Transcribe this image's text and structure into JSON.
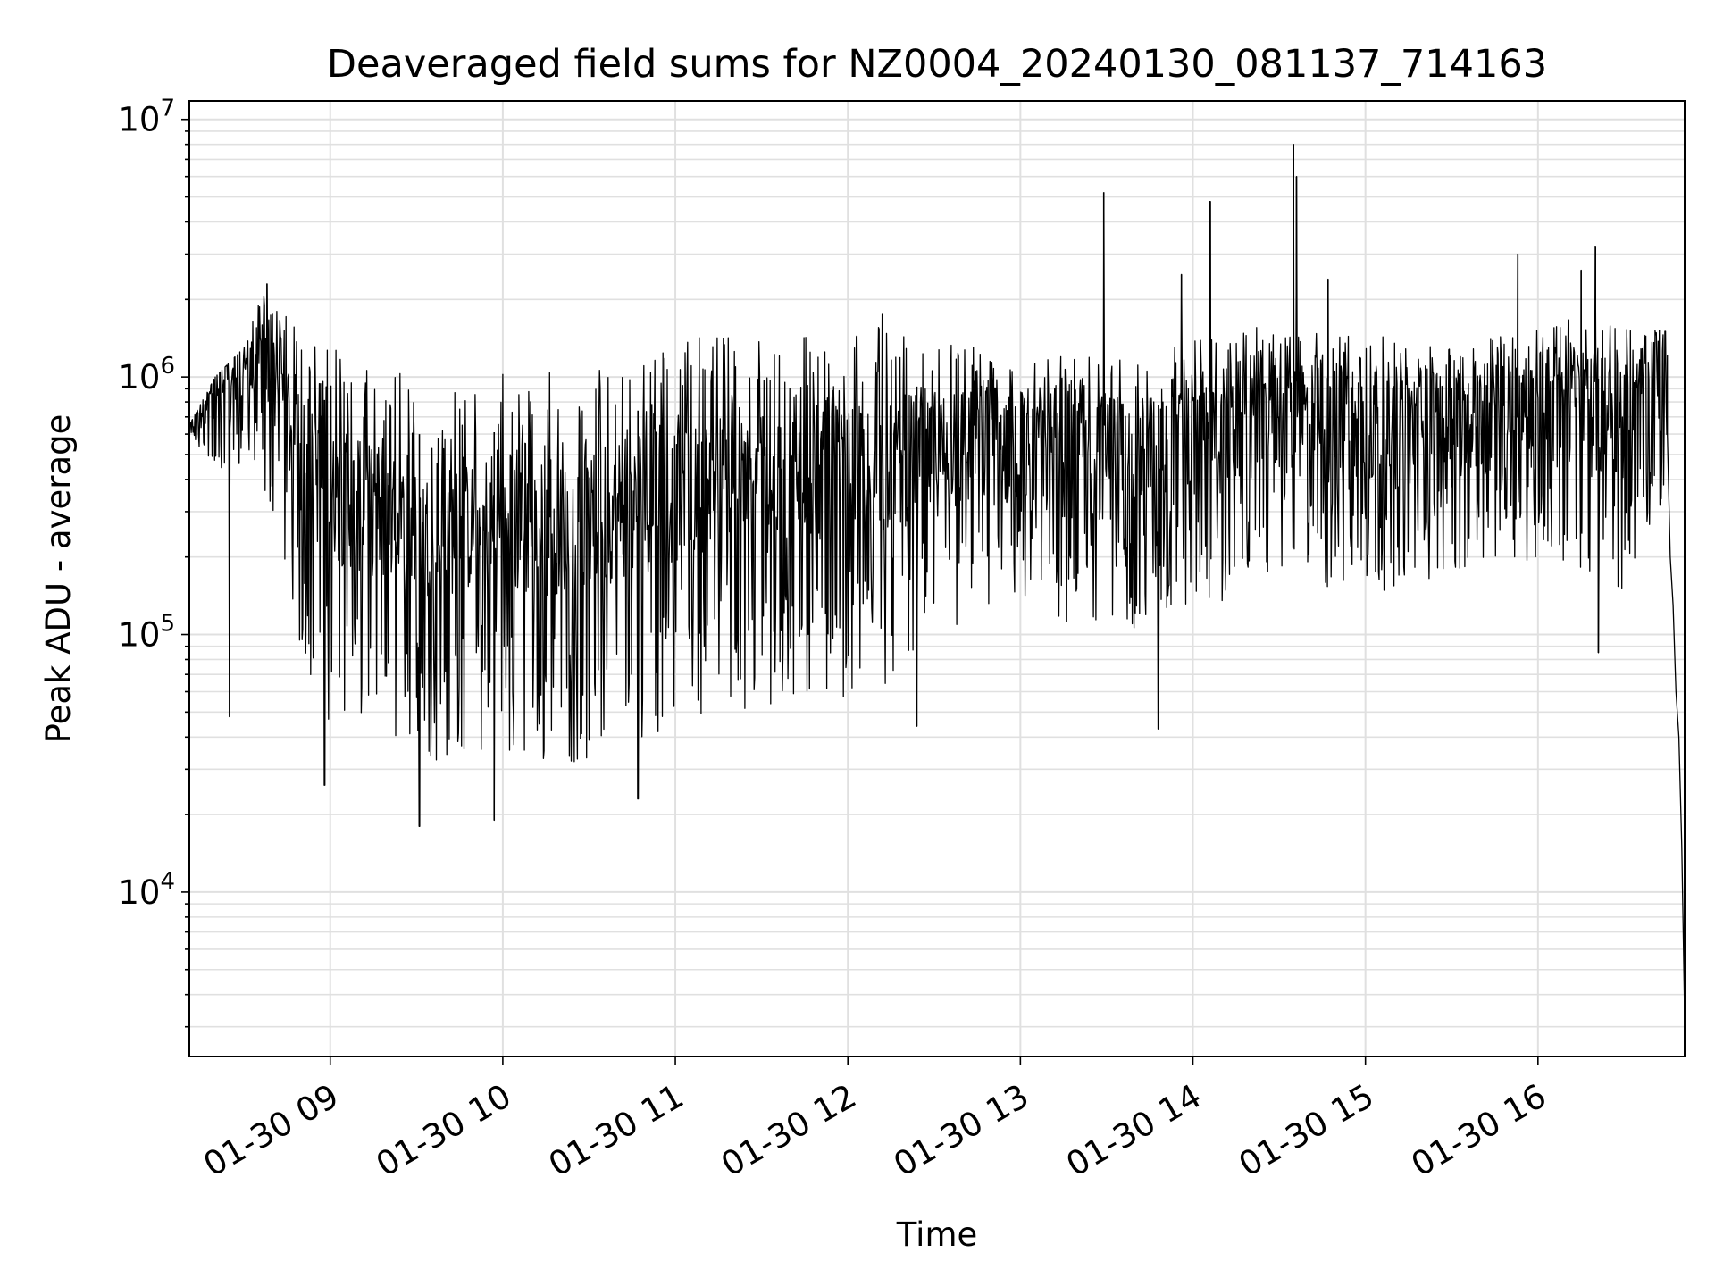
{
  "chart_data": {
    "type": "line",
    "title": "Deaveraged field sums for NZ0004_20240130_081137_714163",
    "xlabel": "Time",
    "ylabel": "Peak ADU - average",
    "yscale": "log",
    "grid": true,
    "x_range": [
      "01-30 08:11",
      "01-30 16:51"
    ],
    "ylim": [
      2300,
      11800000
    ],
    "x_ticks": [
      "01-30 09",
      "01-30 10",
      "01-30 11",
      "01-30 12",
      "01-30 13",
      "01-30 14",
      "01-30 15",
      "01-30 16"
    ],
    "y_ticks": [
      {
        "base": "10",
        "exp": "4",
        "value": 10000
      },
      {
        "base": "10",
        "exp": "5",
        "value": 100000
      },
      {
        "base": "10",
        "exp": "6",
        "value": 1000000
      },
      {
        "base": "10",
        "exp": "7",
        "value": 10000000
      }
    ],
    "series": [
      {
        "color": "#000000",
        "upper_envelope": [
          [
            "01-30 08:11",
            650000
          ],
          [
            "01-30 08:20",
            1000000
          ],
          [
            "01-30 08:30",
            1300000
          ],
          [
            "01-30 08:37",
            2200000
          ],
          [
            "01-30 08:45",
            1700000
          ],
          [
            "01-30 08:55",
            1400000
          ],
          [
            "01-30 09:10",
            1200000
          ],
          [
            "01-30 09:30",
            1000000
          ],
          [
            "01-30 09:50",
            1000000
          ],
          [
            "01-30 10:10",
            1050000
          ],
          [
            "01-30 10:30",
            1150000
          ],
          [
            "01-30 10:50",
            1250000
          ],
          [
            "01-30 11:10",
            1450000
          ],
          [
            "01-30 11:30",
            1500000
          ],
          [
            "01-30 11:50",
            1550000
          ],
          [
            "01-30 12:10",
            1600000
          ],
          [
            "01-30 12:30",
            1500000
          ],
          [
            "01-30 12:50",
            1350000
          ],
          [
            "01-30 13:10",
            1250000
          ],
          [
            "01-30 13:30",
            1250000
          ],
          [
            "01-30 13:50",
            1300000
          ],
          [
            "01-30 14:10",
            1500000
          ],
          [
            "01-30 14:30",
            1600000
          ],
          [
            "01-30 14:50",
            1600000
          ],
          [
            "01-30 15:10",
            1400000
          ],
          [
            "01-30 15:30",
            1300000
          ],
          [
            "01-30 15:50",
            1500000
          ],
          [
            "01-30 16:10",
            1700000
          ],
          [
            "01-30 16:30",
            1600000
          ],
          [
            "01-30 16:45",
            1500000
          ]
        ],
        "lower_envelope": [
          [
            "01-30 08:11",
            600000
          ],
          [
            "01-30 08:20",
            400000
          ],
          [
            "01-30 08:30",
            450000
          ],
          [
            "01-30 08:40",
            300000
          ],
          [
            "01-30 08:50",
            80000
          ],
          [
            "01-30 09:00",
            45000
          ],
          [
            "01-30 09:15",
            40000
          ],
          [
            "01-30 09:30",
            30000
          ],
          [
            "01-30 09:50",
            35000
          ],
          [
            "01-30 10:10",
            30000
          ],
          [
            "01-30 10:30",
            32000
          ],
          [
            "01-30 10:50",
            40000
          ],
          [
            "01-30 11:10",
            50000
          ],
          [
            "01-30 11:30",
            45000
          ],
          [
            "01-30 11:50",
            55000
          ],
          [
            "01-30 12:10",
            60000
          ],
          [
            "01-30 12:30",
            90000
          ],
          [
            "01-30 12:50",
            120000
          ],
          [
            "01-30 13:10",
            110000
          ],
          [
            "01-30 13:30",
            100000
          ],
          [
            "01-30 13:50",
            110000
          ],
          [
            "01-30 14:10",
            130000
          ],
          [
            "01-30 14:30",
            180000
          ],
          [
            "01-30 14:50",
            140000
          ],
          [
            "01-30 15:10",
            150000
          ],
          [
            "01-30 15:30",
            160000
          ],
          [
            "01-30 15:50",
            200000
          ],
          [
            "01-30 16:10",
            180000
          ],
          [
            "01-30 16:30",
            150000
          ],
          [
            "01-30 16:45",
            300000
          ]
        ],
        "spikes": [
          [
            "01-30 08:25",
            48000
          ],
          [
            "01-30 08:38",
            2300000
          ],
          [
            "01-30 08:58",
            26000
          ],
          [
            "01-30 09:31",
            18000
          ],
          [
            "01-30 09:57",
            19000
          ],
          [
            "01-30 10:47",
            23000
          ],
          [
            "01-30 12:12",
            1750000
          ],
          [
            "01-30 12:24",
            44000
          ],
          [
            "01-30 13:29",
            5200000
          ],
          [
            "01-30 13:48",
            43000
          ],
          [
            "01-30 13:56",
            2500000
          ],
          [
            "01-30 14:06",
            4800000
          ],
          [
            "01-30 14:35",
            8000000
          ],
          [
            "01-30 14:36",
            6000000
          ],
          [
            "01-30 14:47",
            2400000
          ],
          [
            "01-30 15:53",
            3000000
          ],
          [
            "01-30 16:15",
            2600000
          ],
          [
            "01-30 16:20",
            3200000
          ],
          [
            "01-30 16:21",
            85000
          ]
        ],
        "tail": [
          [
            "01-30 16:45",
            600000
          ],
          [
            "01-30 16:46",
            200000
          ],
          [
            "01-30 16:47",
            130000
          ],
          [
            "01-30 16:48",
            60000
          ],
          [
            "01-30 16:49",
            40000
          ],
          [
            "01-30 16:50",
            15000
          ],
          [
            "01-30 16:51",
            3300
          ]
        ]
      }
    ]
  }
}
